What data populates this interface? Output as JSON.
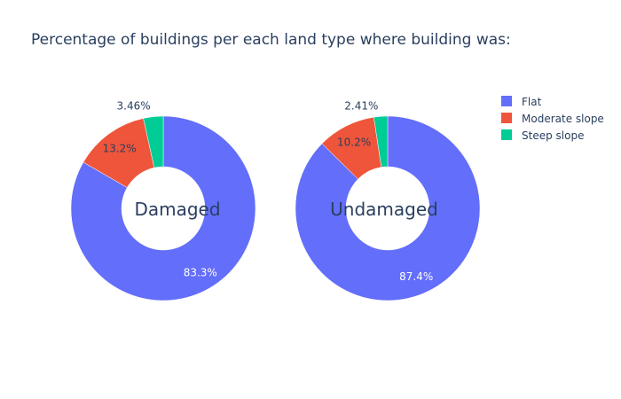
{
  "chart_data": {
    "type": "pie",
    "title": "Percentage of buildings per each land type where building was:",
    "categories": [
      "Flat",
      "Moderate slope",
      "Steep slope"
    ],
    "colors": [
      "#636efa",
      "#ef553b",
      "#00cc96"
    ],
    "legend_position": "top-right",
    "charts": [
      {
        "name": "Damaged",
        "values": [
          83.3,
          13.2,
          3.46
        ],
        "labels": [
          "83.3%",
          "13.2%",
          "3.46%"
        ]
      },
      {
        "name": "Undamaged",
        "values": [
          87.4,
          10.2,
          2.41
        ],
        "labels": [
          "87.4%",
          "10.2%",
          "2.41%"
        ]
      }
    ]
  }
}
